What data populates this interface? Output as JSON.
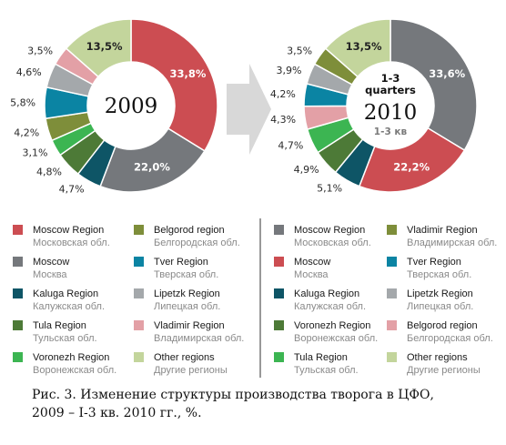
{
  "palette": {
    "moscow_region": "#cc4d52",
    "moscow": "#75787c",
    "kaluga": "#0e5566",
    "tula": "#4d7a37",
    "voronezh": "#3cb552",
    "belgorod": "#7e8e3a",
    "tver": "#0b84a3",
    "lipetzk": "#a4a8ab",
    "vladimir": "#e3a0a6",
    "other": "#c3d59c",
    "arrow": "#d8d8d8",
    "divider": "#333333"
  },
  "chart_data": [
    {
      "type": "pie",
      "donut": true,
      "center_label": "2009",
      "slices": [
        {
          "key": "moscow_region",
          "value": 33.8,
          "label": "33,8%",
          "label_inside": true
        },
        {
          "key": "moscow",
          "value": 22.0,
          "label": "22,0%",
          "label_inside": true
        },
        {
          "key": "kaluga",
          "value": 4.7,
          "label": "4,7%"
        },
        {
          "key": "tula",
          "value": 4.8,
          "label": "4,8%"
        },
        {
          "key": "voronezh",
          "value": 3.1,
          "label": "3,1%"
        },
        {
          "key": "belgorod",
          "value": 4.2,
          "label": "4,2%"
        },
        {
          "key": "tver",
          "value": 5.8,
          "label": "5,8%"
        },
        {
          "key": "lipetzk",
          "value": 4.6,
          "label": "4,6%"
        },
        {
          "key": "vladimir",
          "value": 3.5,
          "label": "3,5%"
        },
        {
          "key": "other",
          "value": 13.5,
          "label": "13,5%",
          "label_inside": true,
          "dark_label": true
        }
      ]
    },
    {
      "type": "pie",
      "donut": true,
      "center_top": "1-3 quarters",
      "center_label": "2010",
      "center_sub": "1-3 кв",
      "slices": [
        {
          "key": "moscow",
          "value": 33.6,
          "label": "33,6%",
          "label_inside": true
        },
        {
          "key": "moscow_region",
          "value": 22.2,
          "label": "22,2%",
          "label_inside": true
        },
        {
          "key": "kaluga",
          "value": 5.1,
          "label": "5,1%"
        },
        {
          "key": "tula",
          "value": 4.9,
          "label": "4,9%"
        },
        {
          "key": "voronezh",
          "value": 4.7,
          "label": "4,7%"
        },
        {
          "key": "vladimir",
          "value": 4.3,
          "label": "4,3%"
        },
        {
          "key": "tver",
          "value": 4.2,
          "label": "4,2%"
        },
        {
          "key": "lipetzk",
          "value": 3.9,
          "label": "3,9%"
        },
        {
          "key": "belgorod",
          "value": 3.5,
          "label": "3,5%"
        },
        {
          "key": "other",
          "value": 13.5,
          "label": "13,5%",
          "label_inside": true,
          "dark_label": true
        }
      ]
    }
  ],
  "legend_left": [
    {
      "key": "moscow_region",
      "en": "Moscow Region",
      "ru": "Московская обл."
    },
    {
      "key": "belgorod",
      "en": "Belgorod region",
      "ru": "Белгородская обл."
    },
    {
      "key": "moscow",
      "en": "Moscow",
      "ru": "Москва"
    },
    {
      "key": "tver",
      "en": "Tver Region",
      "ru": "Тверская обл."
    },
    {
      "key": "kaluga",
      "en": "Kaluga Region",
      "ru": "Калужская обл."
    },
    {
      "key": "lipetzk",
      "en": "Lipetzk Region",
      "ru": "Липецкая обл."
    },
    {
      "key": "tula",
      "en": "Tula Region",
      "ru": "Тульская обл."
    },
    {
      "key": "vladimir",
      "en": "Vladimir Region",
      "ru": "Владимирская обл."
    },
    {
      "key": "voronezh",
      "en": "Voronezh Region",
      "ru": "Воронежская обл."
    },
    {
      "key": "other",
      "en": "Other regions",
      "ru": "Другие регионы"
    }
  ],
  "legend_right": [
    {
      "key": "moscow",
      "en": "Moscow Region",
      "ru": "Московская обл."
    },
    {
      "key": "belgorod",
      "en": "Vladimir Region",
      "ru": "Владимирская обл."
    },
    {
      "key": "moscow_region",
      "en": "Moscow",
      "ru": "Москва"
    },
    {
      "key": "tver",
      "en": "Tver Region",
      "ru": "Тверская обл."
    },
    {
      "key": "kaluga",
      "en": "Kaluga Region",
      "ru": "Калужская обл."
    },
    {
      "key": "lipetzk",
      "en": "Lipetzk Region",
      "ru": "Липецкая обл."
    },
    {
      "key": "tula",
      "en": "Voronezh Region",
      "ru": "Воронежская обл."
    },
    {
      "key": "vladimir",
      "en": "Belgorod region",
      "ru": "Белгородская обл."
    },
    {
      "key": "voronezh",
      "en": "Tula Region",
      "ru": "Тульская обл."
    },
    {
      "key": "other",
      "en": "Other regions",
      "ru": "Другие регионы"
    }
  ],
  "caption": {
    "line1": "Рис. 3. Изменение структуры производства творога в ЦФО,",
    "line2": "2009 – I-3 кв. 2010 гг., %."
  }
}
